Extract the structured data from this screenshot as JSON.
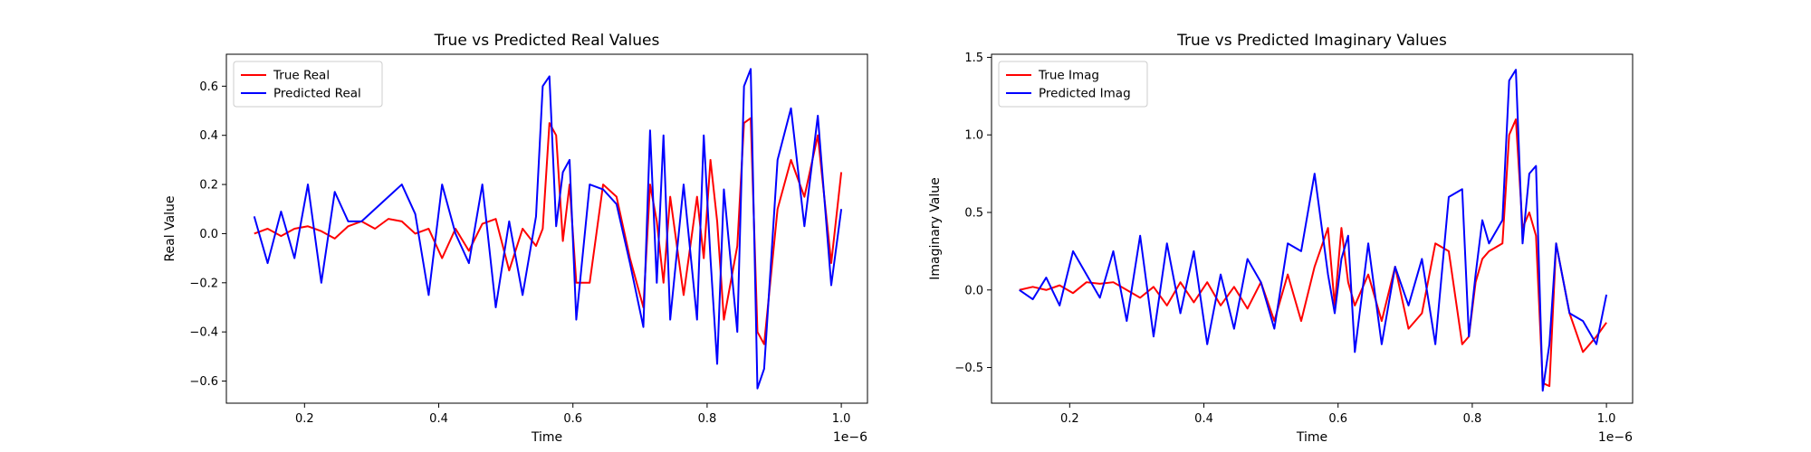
{
  "chart_data": [
    {
      "type": "line",
      "title": "True vs Predicted Real Values",
      "xlabel": "Time",
      "ylabel": "Real Value",
      "x_offset_label": "1e−6",
      "xlim": [
        0.0835,
        1.039
      ],
      "ylim": [
        -0.69,
        0.73
      ],
      "xticks": [
        0.2,
        0.4,
        0.6,
        0.8,
        1.0
      ],
      "xtick_labels": [
        "0.2",
        "0.4",
        "0.6",
        "0.8",
        "1.0"
      ],
      "yticks": [
        -0.6,
        -0.4,
        -0.2,
        0.0,
        0.2,
        0.4,
        0.6
      ],
      "ytick_labels": [
        "−0.6",
        "−0.4",
        "−0.2",
        "0.0",
        "0.2",
        "0.4",
        "0.6"
      ],
      "grid": false,
      "legend_position": "top-left",
      "x": [
        0.125,
        0.145,
        0.165,
        0.185,
        0.205,
        0.225,
        0.245,
        0.265,
        0.285,
        0.305,
        0.325,
        0.345,
        0.365,
        0.385,
        0.405,
        0.425,
        0.445,
        0.465,
        0.485,
        0.505,
        0.525,
        0.545,
        0.555,
        0.565,
        0.575,
        0.585,
        0.595,
        0.605,
        0.625,
        0.645,
        0.665,
        0.685,
        0.705,
        0.715,
        0.725,
        0.735,
        0.745,
        0.765,
        0.785,
        0.795,
        0.805,
        0.815,
        0.825,
        0.845,
        0.855,
        0.865,
        0.875,
        0.885,
        0.905,
        0.925,
        0.945,
        0.965,
        0.985,
        1.0
      ],
      "series": [
        {
          "name": "True Real",
          "color": "#ff0000",
          "values": [
            0.0,
            0.02,
            -0.01,
            0.02,
            0.03,
            0.01,
            -0.02,
            0.03,
            0.05,
            0.02,
            0.06,
            0.05,
            0.0,
            0.02,
            -0.1,
            0.02,
            -0.07,
            0.04,
            0.06,
            -0.15,
            0.02,
            -0.05,
            0.02,
            0.45,
            0.4,
            -0.03,
            0.2,
            -0.2,
            -0.2,
            0.2,
            0.15,
            -0.1,
            -0.3,
            0.2,
            0.05,
            -0.2,
            0.15,
            -0.25,
            0.15,
            -0.1,
            0.3,
            0.05,
            -0.35,
            -0.05,
            0.45,
            0.47,
            -0.4,
            -0.45,
            0.1,
            0.3,
            0.15,
            0.4,
            -0.12,
            0.25
          ]
        },
        {
          "name": "Predicted Real",
          "color": "#0000ff",
          "values": [
            0.07,
            -0.12,
            0.09,
            -0.1,
            0.2,
            -0.2,
            0.17,
            0.05,
            0.05,
            0.1,
            0.15,
            0.2,
            0.08,
            -0.25,
            0.2,
            0.0,
            -0.12,
            0.2,
            -0.3,
            0.05,
            -0.25,
            0.07,
            0.6,
            0.64,
            0.03,
            0.25,
            0.3,
            -0.35,
            0.2,
            0.18,
            0.12,
            -0.12,
            -0.38,
            0.42,
            -0.2,
            0.4,
            -0.35,
            0.2,
            -0.35,
            0.4,
            -0.1,
            -0.53,
            0.18,
            -0.4,
            0.6,
            0.67,
            -0.63,
            -0.55,
            0.3,
            0.51,
            0.03,
            0.48,
            -0.21,
            0.1
          ]
        }
      ]
    },
    {
      "type": "line",
      "title": "True vs Predicted Imaginary Values",
      "xlabel": "Time",
      "ylabel": "Imaginary Value",
      "x_offset_label": "1e−6",
      "xlim": [
        0.0835,
        1.039
      ],
      "ylim": [
        -0.73,
        1.52
      ],
      "xticks": [
        0.2,
        0.4,
        0.6,
        0.8,
        1.0
      ],
      "xtick_labels": [
        "0.2",
        "0.4",
        "0.6",
        "0.8",
        "1.0"
      ],
      "yticks": [
        -0.5,
        0.0,
        0.5,
        1.0,
        1.5
      ],
      "ytick_labels": [
        "−0.5",
        "0.0",
        "0.5",
        "1.0",
        "1.5"
      ],
      "grid": false,
      "legend_position": "top-left",
      "x": [
        0.125,
        0.145,
        0.165,
        0.185,
        0.205,
        0.225,
        0.245,
        0.265,
        0.285,
        0.305,
        0.325,
        0.345,
        0.365,
        0.385,
        0.405,
        0.425,
        0.445,
        0.465,
        0.485,
        0.505,
        0.525,
        0.545,
        0.565,
        0.585,
        0.595,
        0.605,
        0.615,
        0.625,
        0.645,
        0.665,
        0.685,
        0.705,
        0.725,
        0.745,
        0.765,
        0.785,
        0.795,
        0.805,
        0.815,
        0.825,
        0.845,
        0.855,
        0.865,
        0.875,
        0.885,
        0.895,
        0.905,
        0.915,
        0.925,
        0.945,
        0.965,
        0.985,
        1.0
      ],
      "series": [
        {
          "name": "True Imag",
          "color": "#ff0000",
          "values": [
            0.0,
            0.02,
            0.0,
            0.03,
            -0.02,
            0.05,
            0.04,
            0.05,
            0.0,
            -0.05,
            0.02,
            -0.1,
            0.05,
            -0.08,
            0.05,
            -0.1,
            0.02,
            -0.12,
            0.05,
            -0.2,
            0.1,
            -0.2,
            0.15,
            0.4,
            -0.1,
            0.4,
            0.05,
            -0.1,
            0.1,
            -0.2,
            0.15,
            -0.25,
            -0.15,
            0.3,
            0.25,
            -0.35,
            -0.3,
            0.05,
            0.2,
            0.25,
            0.3,
            1.0,
            1.1,
            0.4,
            0.5,
            0.35,
            -0.6,
            -0.62,
            0.3,
            -0.15,
            -0.4,
            -0.3,
            -0.21
          ]
        },
        {
          "name": "Predicted Imag",
          "color": "#0000ff",
          "values": [
            0.0,
            -0.06,
            0.08,
            -0.1,
            0.25,
            0.1,
            -0.05,
            0.25,
            -0.2,
            0.35,
            -0.3,
            0.3,
            -0.15,
            0.25,
            -0.35,
            0.1,
            -0.25,
            0.2,
            0.05,
            -0.25,
            0.3,
            0.25,
            0.75,
            0.1,
            -0.15,
            0.2,
            0.35,
            -0.4,
            0.3,
            -0.35,
            0.15,
            -0.1,
            0.2,
            -0.35,
            0.6,
            0.65,
            -0.3,
            0.1,
            0.45,
            0.3,
            0.45,
            1.35,
            1.42,
            0.3,
            0.75,
            0.8,
            -0.65,
            -0.35,
            0.3,
            -0.15,
            -0.2,
            -0.35,
            -0.03
          ]
        }
      ]
    }
  ]
}
